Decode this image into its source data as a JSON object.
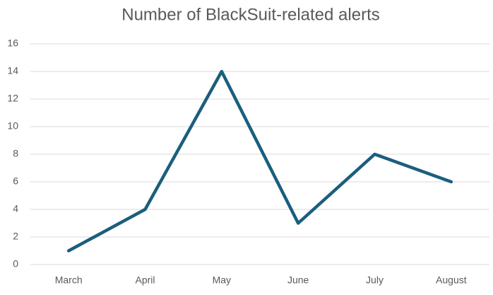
{
  "chart_data": {
    "type": "line",
    "title": "Number of BlackSuit-related alerts",
    "categories": [
      "March",
      "April",
      "May",
      "June",
      "July",
      "August"
    ],
    "values": [
      1,
      4,
      14,
      3,
      8,
      6
    ],
    "color": "#1b5e7e",
    "ylim": [
      0,
      16
    ],
    "yticks": [
      0,
      2,
      4,
      6,
      8,
      10,
      12,
      14,
      16
    ],
    "grid": true
  }
}
